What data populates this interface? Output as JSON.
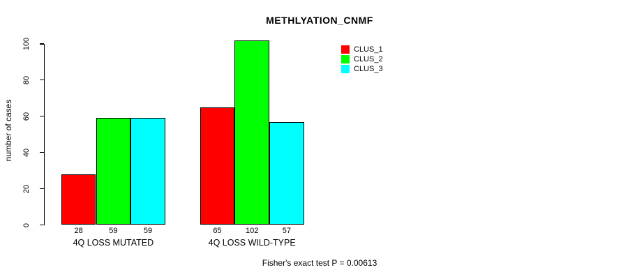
{
  "chart_data": {
    "type": "bar",
    "title": "METHLYATION_CNMF",
    "xlabel": "",
    "ylabel": "number of cases",
    "ylim": [
      0,
      100
    ],
    "yticks": [
      0,
      20,
      40,
      60,
      80,
      100
    ],
    "grid": false,
    "legend_position": "top-right",
    "categories": [
      "4Q LOSS MUTATED",
      "4Q LOSS WILD-TYPE"
    ],
    "series": [
      {
        "name": "CLUS_1",
        "color": "#FF0000",
        "values": [
          28,
          65
        ]
      },
      {
        "name": "CLUS_2",
        "color": "#00FF00",
        "values": [
          59,
          102
        ]
      },
      {
        "name": "CLUS_3",
        "color": "#00FFFF",
        "values": [
          59,
          57
        ]
      }
    ],
    "bar_value_labels": [
      [
        28,
        59,
        59
      ],
      [
        65,
        102,
        57
      ]
    ],
    "annotation": "Fisher's exact test P = 0.00613"
  }
}
